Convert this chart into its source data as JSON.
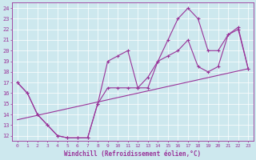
{
  "xlabel": "Windchill (Refroidissement éolien,°C)",
  "bg_color": "#cde8ee",
  "grid_color": "#ffffff",
  "line_color": "#993399",
  "xlim": [
    -0.5,
    23.5
  ],
  "ylim": [
    11.5,
    24.5
  ],
  "xticks": [
    0,
    1,
    2,
    3,
    4,
    5,
    6,
    7,
    8,
    9,
    10,
    11,
    12,
    13,
    14,
    15,
    16,
    17,
    18,
    19,
    20,
    21,
    22,
    23
  ],
  "yticks": [
    12,
    13,
    14,
    15,
    16,
    17,
    18,
    19,
    20,
    21,
    22,
    23,
    24
  ],
  "line1_x": [
    0,
    1,
    2,
    3,
    4,
    5,
    6,
    7,
    8,
    9,
    10,
    11,
    12,
    13,
    14,
    15,
    16,
    17,
    18,
    19,
    20,
    21,
    22,
    23
  ],
  "line1_y": [
    17.0,
    16.0,
    14.0,
    13.0,
    12.0,
    11.8,
    11.8,
    11.8,
    15.0,
    16.5,
    16.5,
    16.5,
    16.5,
    17.5,
    19.0,
    19.5,
    20.0,
    21.0,
    18.5,
    18.0,
    18.5,
    21.5,
    22.0,
    18.3
  ],
  "line2_x": [
    0,
    1,
    2,
    3,
    4,
    5,
    6,
    7,
    8,
    9,
    10,
    11,
    12,
    13,
    14,
    15,
    16,
    17,
    18,
    19,
    20,
    21,
    22,
    23
  ],
  "line2_y": [
    17.0,
    16.0,
    14.0,
    13.0,
    12.0,
    11.8,
    11.8,
    11.8,
    15.0,
    19.0,
    19.5,
    20.0,
    16.5,
    16.5,
    19.0,
    21.0,
    23.0,
    24.0,
    23.0,
    20.0,
    20.0,
    21.5,
    22.2,
    18.3
  ],
  "line3_x": [
    0,
    23
  ],
  "line3_y": [
    13.5,
    18.3
  ]
}
